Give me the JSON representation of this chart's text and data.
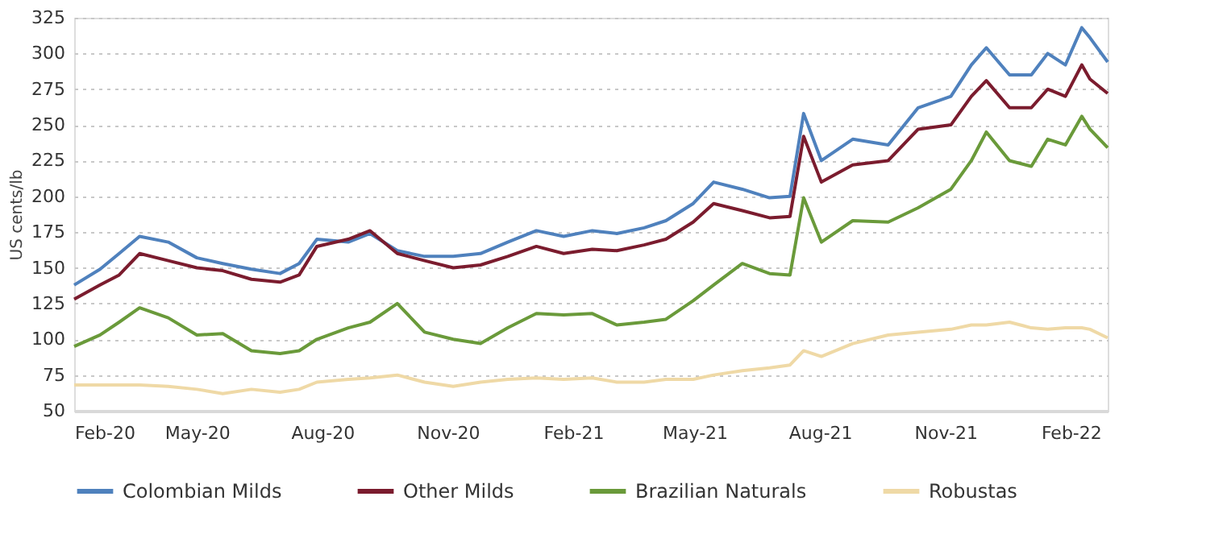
{
  "chart_data": {
    "type": "line",
    "ylabel": "US cents/lb",
    "x": [
      "2020-02-01",
      "2020-02-20",
      "2020-03-05",
      "2020-03-20",
      "2020-04-10",
      "2020-05-01",
      "2020-05-20",
      "2020-06-10",
      "2020-07-01",
      "2020-07-15",
      "2020-07-28",
      "2020-08-20",
      "2020-09-05",
      "2020-09-25",
      "2020-10-15",
      "2020-11-05",
      "2020-11-25",
      "2020-12-15",
      "2021-01-05",
      "2021-01-25",
      "2021-02-15",
      "2021-03-05",
      "2021-03-25",
      "2021-04-10",
      "2021-04-30",
      "2021-05-15",
      "2021-06-05",
      "2021-06-25",
      "2021-07-10",
      "2021-07-20",
      "2021-08-02",
      "2021-08-25",
      "2021-09-20",
      "2021-10-12",
      "2021-11-05",
      "2021-11-20",
      "2021-12-01",
      "2021-12-18",
      "2022-01-03",
      "2022-01-15",
      "2022-01-28",
      "2022-02-09",
      "2022-02-15",
      "2022-02-28"
    ],
    "series": [
      {
        "name": "Colombian Milds",
        "color": "#4f81bd",
        "values": [
          138,
          149,
          160,
          172,
          168,
          157,
          153,
          149,
          146,
          153,
          170,
          168,
          174,
          162,
          158,
          158,
          160,
          168,
          176,
          172,
          176,
          174,
          178,
          183,
          195,
          210,
          205,
          199,
          200,
          258,
          225,
          240,
          236,
          262,
          270,
          292,
          304,
          285,
          285,
          300,
          292,
          318,
          311,
          294
        ]
      },
      {
        "name": "Other Milds",
        "color": "#7b1c2e",
        "values": [
          128,
          138,
          145,
          160,
          155,
          150,
          148,
          142,
          140,
          145,
          165,
          170,
          176,
          160,
          155,
          150,
          152,
          158,
          165,
          160,
          163,
          162,
          166,
          170,
          182,
          195,
          190,
          185,
          186,
          242,
          210,
          222,
          225,
          247,
          250,
          270,
          281,
          262,
          262,
          275,
          270,
          292,
          282,
          272
        ]
      },
      {
        "name": "Brazilian Naturals",
        "color": "#6a9a3a",
        "values": [
          95,
          103,
          112,
          122,
          115,
          103,
          104,
          92,
          90,
          92,
          100,
          108,
          112,
          125,
          105,
          100,
          97,
          108,
          118,
          117,
          118,
          110,
          112,
          114,
          127,
          138,
          153,
          146,
          145,
          199,
          168,
          183,
          182,
          192,
          205,
          225,
          245,
          225,
          221,
          240,
          236,
          256,
          247,
          234
        ]
      },
      {
        "name": "Robustas",
        "color": "#efd9a6",
        "values": [
          68,
          68,
          68,
          68,
          67,
          65,
          62,
          65,
          63,
          65,
          70,
          72,
          73,
          75,
          70,
          67,
          70,
          72,
          73,
          72,
          73,
          70,
          70,
          72,
          72,
          75,
          78,
          80,
          82,
          92,
          88,
          97,
          103,
          105,
          107,
          110,
          110,
          112,
          108,
          107,
          108,
          108,
          107,
          101
        ]
      }
    ],
    "xlim": [
      "2020-02-01",
      "2022-02-28"
    ],
    "xticks": [
      {
        "value": "2020-02-01",
        "label": "Feb-20"
      },
      {
        "value": "2020-05-01",
        "label": "May-20"
      },
      {
        "value": "2020-08-01",
        "label": "Aug-20"
      },
      {
        "value": "2020-11-01",
        "label": "Nov-20"
      },
      {
        "value": "2021-02-01",
        "label": "Feb-21"
      },
      {
        "value": "2021-05-01",
        "label": "May-21"
      },
      {
        "value": "2021-08-01",
        "label": "Aug-21"
      },
      {
        "value": "2021-11-01",
        "label": "Nov-21"
      },
      {
        "value": "2022-02-01",
        "label": "Feb-22"
      }
    ],
    "ylim": [
      50,
      325
    ],
    "yticks": [
      50,
      75,
      100,
      125,
      150,
      175,
      200,
      225,
      250,
      275,
      300,
      325
    ],
    "grid": "y",
    "legend": "bottom",
    "marker": "none",
    "line_style": "solid"
  }
}
